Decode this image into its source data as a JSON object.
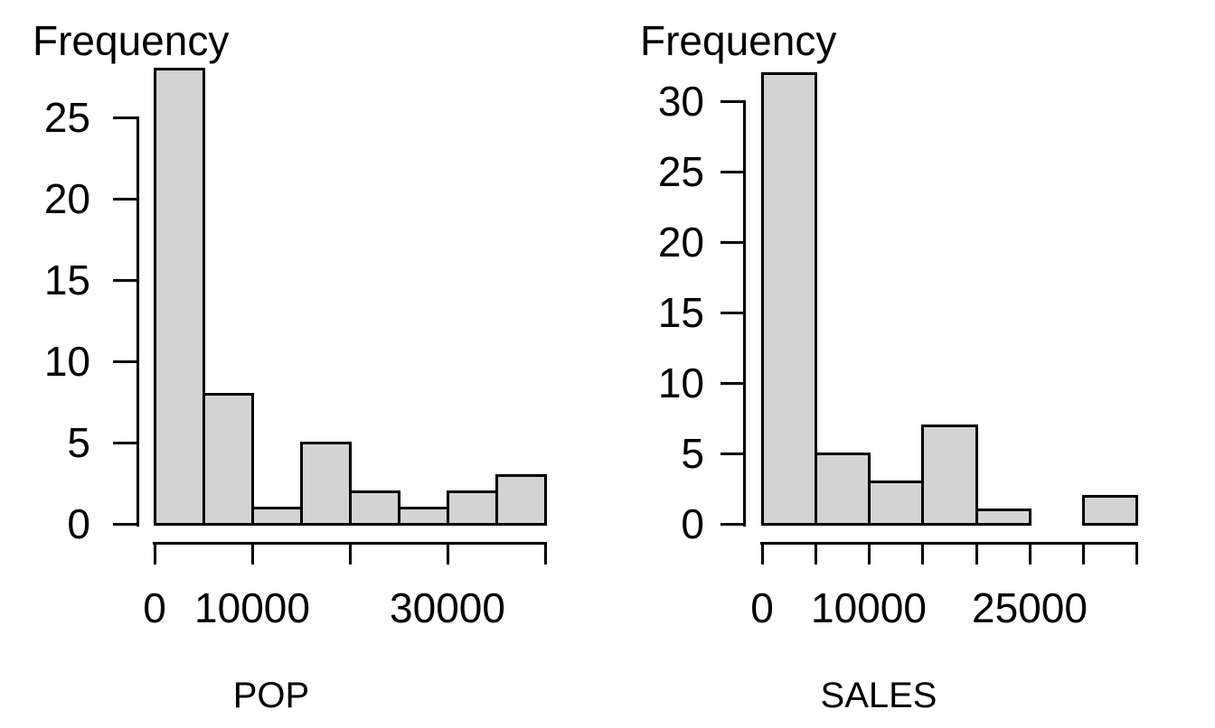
{
  "figure": {
    "background_color": "#ffffff",
    "bar_fill_color": "#d3d3d3",
    "line_color": "#000000",
    "text_color": "#000000"
  },
  "chart_data": [
    {
      "type": "bar",
      "subtype": "histogram",
      "title": "",
      "xlabel": "POP",
      "ylabel": "Frequency",
      "bin_edges": [
        0,
        5000,
        10000,
        15000,
        20000,
        25000,
        30000,
        35000,
        40000
      ],
      "values": [
        28,
        8,
        1,
        5,
        2,
        1,
        2,
        3
      ],
      "x_ticks": [
        0,
        10000,
        20000,
        30000,
        40000
      ],
      "x_tick_labels": [
        "0",
        "10000",
        "",
        "30000",
        ""
      ],
      "y_ticks": [
        0,
        5,
        10,
        15,
        20,
        25
      ],
      "y_tick_labels": [
        "0",
        "5",
        "10",
        "15",
        "20",
        "25"
      ],
      "xlim": [
        0,
        40000
      ],
      "ylim": [
        0,
        28
      ],
      "grid": false,
      "legend": null
    },
    {
      "type": "bar",
      "subtype": "histogram",
      "title": "",
      "xlabel": "SALES",
      "ylabel": "Frequency",
      "bin_edges": [
        0,
        5000,
        10000,
        15000,
        20000,
        25000,
        30000,
        35000
      ],
      "values": [
        32,
        5,
        3,
        7,
        1,
        0,
        2
      ],
      "x_ticks": [
        0,
        5000,
        10000,
        15000,
        20000,
        25000,
        30000,
        35000
      ],
      "x_tick_labels": [
        "0",
        "",
        "10000",
        "",
        "",
        "25000",
        "",
        ""
      ],
      "y_ticks": [
        0,
        5,
        10,
        15,
        20,
        25,
        30
      ],
      "y_tick_labels": [
        "0",
        "5",
        "10",
        "15",
        "20",
        "25",
        "30"
      ],
      "xlim": [
        0,
        35000
      ],
      "ylim": [
        0,
        32
      ],
      "grid": false,
      "legend": null
    }
  ]
}
